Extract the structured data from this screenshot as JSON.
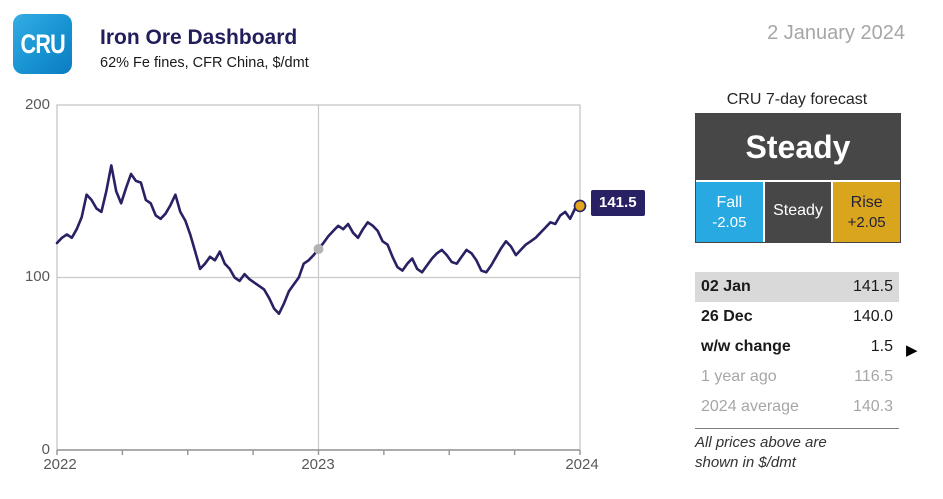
{
  "header": {
    "logo_text": "CRU",
    "title": "Iron Ore Dashboard",
    "subtitle": "62% Fe fines, CFR China, $/dmt",
    "date": "2 January 2024"
  },
  "chart_data": {
    "type": "line",
    "title": "Iron Ore Dashboard",
    "series_name": "Iron ore 62% Fe fines, CFR China, $/dmt (weekly)",
    "unit": "$/dmt",
    "x_range": [
      2022,
      2024
    ],
    "x_ticks": [
      "2022",
      "2023",
      "2024"
    ],
    "y_ticks": [
      "200",
      "100",
      "0"
    ],
    "ylim": [
      0,
      200
    ],
    "grid": true,
    "grid_h_value": 100,
    "grid_v_pos": 0.5,
    "line_color": "#282163",
    "label_bg": "#282163",
    "end_label": "141.5",
    "values": [
      120,
      123,
      125,
      123,
      128,
      135,
      148,
      145,
      140,
      138,
      150,
      165,
      150,
      143,
      152,
      160,
      156,
      155,
      145,
      143,
      136,
      134,
      137,
      142,
      148,
      138,
      133,
      125,
      115,
      105,
      108,
      112,
      110,
      115,
      108,
      105,
      100,
      98,
      102,
      99,
      97,
      95,
      93,
      88,
      82,
      79,
      85,
      92,
      96,
      100,
      108,
      110,
      113,
      116.5,
      120,
      124,
      127,
      130,
      128,
      131,
      126,
      123,
      128,
      132,
      130,
      127,
      121,
      119,
      112,
      106,
      104,
      108,
      111,
      105,
      103,
      107,
      111,
      114,
      116,
      113,
      109,
      108,
      112,
      116,
      114,
      110,
      104,
      103,
      107,
      112,
      117,
      121,
      118,
      113,
      116,
      119,
      121,
      123,
      126,
      129,
      132,
      131,
      136,
      138,
      134,
      140,
      141.5
    ],
    "markers": [
      {
        "name": "year-ago-marker",
        "pos": 0.5,
        "value": 116.5,
        "color": "#b3b3b3",
        "ring": false
      },
      {
        "name": "latest-marker",
        "pos": 1.0,
        "value": 141.5,
        "color": "#e2a51d",
        "ring": true
      }
    ]
  },
  "forecast": {
    "title": "CRU 7-day forecast",
    "headline": "Steady",
    "panel_bg": "#474747",
    "panel_fg": "#ffffff",
    "options": [
      {
        "label": "Fall",
        "value": "-2.05",
        "bg": "#29a9e1",
        "fg": "#ffffff"
      },
      {
        "label": "Steady",
        "value": "",
        "bg": "#474747",
        "fg": "#ffffff"
      },
      {
        "label": "Rise",
        "value": "+2.05",
        "bg": "#d8a51d",
        "fg": "#21203f"
      }
    ]
  },
  "stats": {
    "rows": [
      {
        "label": "02 Jan",
        "value": "141.5",
        "highlight": true,
        "bold": true
      },
      {
        "label": "26 Dec",
        "value": "140.0",
        "highlight": false,
        "bold": true
      },
      {
        "label": "w/w change",
        "value": "1.5",
        "highlight": false,
        "bold": true
      },
      {
        "label": "1 year ago",
        "value": "116.5",
        "highlight": false,
        "muted": true
      },
      {
        "label": "2024 average",
        "value": "140.3",
        "highlight": false,
        "muted": true
      }
    ],
    "footnote_line1": "All prices above are",
    "footnote_line2": "shown in $/dmt"
  },
  "icons": {
    "ww_change_arrow": "▶"
  },
  "colors": {
    "navy": "#282163",
    "title_navy": "#221e5b",
    "blue": "#29a9e1",
    "gold": "#d8a51d",
    "dark_gray": "#474747",
    "highlight_bg": "#d9d9d9",
    "muted_text": "#a6a6a6",
    "axis_text": "#595959",
    "grid_line": "#c9c9c9"
  }
}
